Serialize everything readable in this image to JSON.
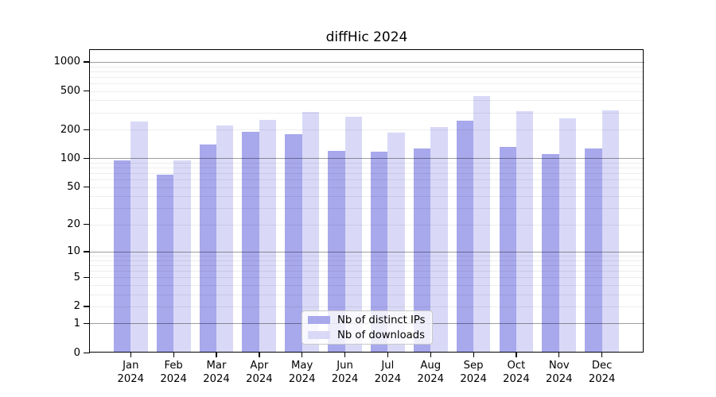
{
  "chart_data": {
    "type": "bar",
    "title": "diffHic 2024",
    "categories": [
      "Jan",
      "Feb",
      "Mar",
      "Apr",
      "May",
      "Jun",
      "Jul",
      "Aug",
      "Sep",
      "Oct",
      "Nov",
      "Dec"
    ],
    "x_tick_year_line": "2024",
    "series": [
      {
        "name": "Nb of distinct IPs",
        "color": "#a8a8ec",
        "values": [
          95,
          68,
          140,
          190,
          180,
          119,
          117,
          126,
          245,
          132,
          110,
          128
        ]
      },
      {
        "name": "Nb of downloads",
        "color": "#d9d9f7",
        "values": [
          240,
          95,
          220,
          250,
          305,
          272,
          185,
          210,
          445,
          310,
          260,
          315
        ]
      }
    ],
    "yticks": [
      0,
      1,
      2,
      5,
      10,
      20,
      50,
      100,
      200,
      500,
      1000
    ],
    "xlabel": "",
    "ylabel": "",
    "y_scale": "log1p",
    "ylim": [
      0,
      1240
    ],
    "grid": {
      "horizontal": true,
      "minor_values": [
        2,
        3,
        4,
        5,
        6,
        7,
        8,
        9,
        20,
        30,
        40,
        50,
        60,
        70,
        80,
        90,
        200,
        300,
        400,
        500,
        600,
        700,
        800,
        900
      ],
      "major_values": [
        1,
        10,
        100,
        1000
      ],
      "minor_color": "rgba(0,0,0,0.07)",
      "major_color": "rgba(0,0,0,0.38)"
    },
    "legend": {
      "position": "inside-bottom-center",
      "entries": [
        "Nb of distinct IPs",
        "Nb of downloads"
      ]
    },
    "frame_color": "#000000",
    "background_color": "#ffffff"
  }
}
